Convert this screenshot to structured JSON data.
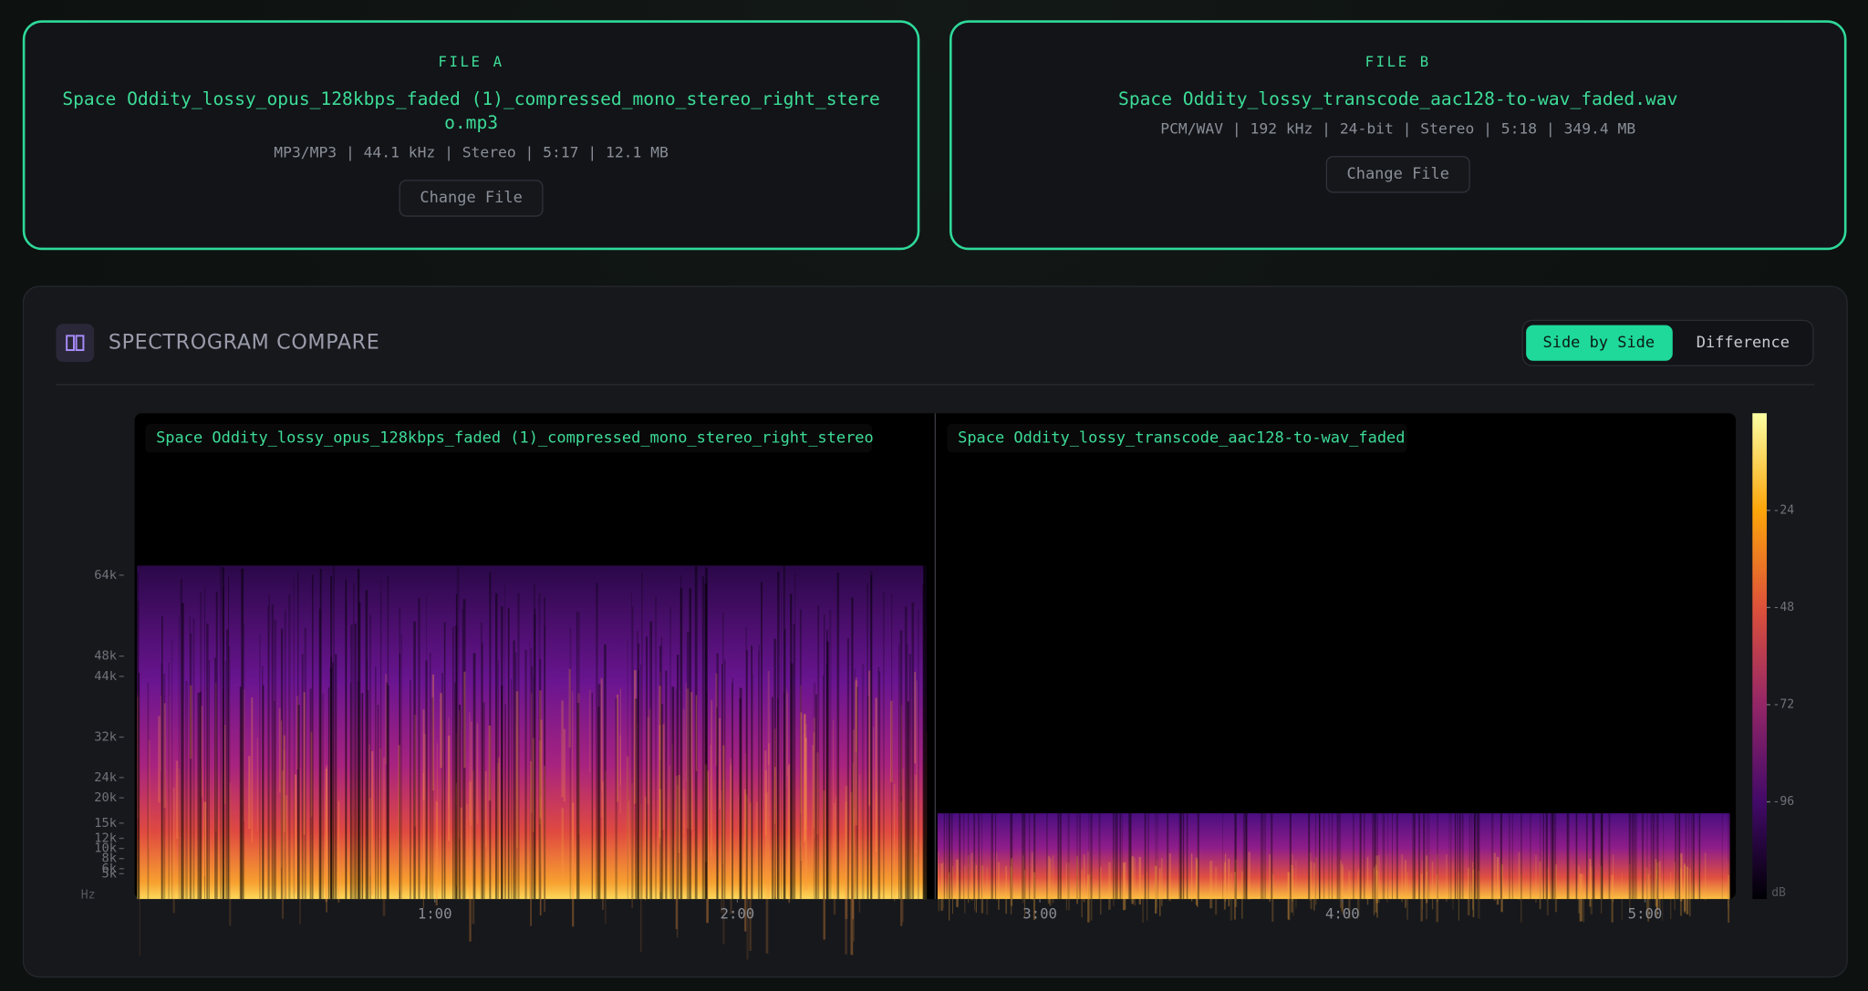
{
  "file_a": {
    "label": "FILE A",
    "filename": "Space Oddity_lossy_opus_128kbps_faded (1)_compressed_mono_stereo_right_stereo.mp3",
    "meta": "MP3/MP3 | 44.1 kHz | Stereo | 5:17 | 12.1 MB",
    "button": "Change File"
  },
  "file_b": {
    "label": "FILE B",
    "filename": "Space Oddity_lossy_transcode_aac128-to-wav_faded.wav",
    "meta": "PCM/WAV | 192 kHz | 24-bit | Stereo | 5:18 | 349.4 MB",
    "button": "Change File"
  },
  "panel": {
    "title": "SPECTROGRAM COMPARE",
    "modes": [
      "Side by Side",
      "Difference"
    ]
  },
  "spectrogram": {
    "labels": [
      "Space Oddity_lossy_opus_128kbps_faded (1)_compressed_mono_stereo_right_stereo",
      "Space Oddity_lossy_transcode_aac128-to-wav_faded"
    ],
    "y_unit": "Hz",
    "ylim": [
      0,
      96000
    ],
    "yticks": [
      {
        "value": 64000,
        "label": "64k"
      },
      {
        "value": 48000,
        "label": "48k"
      },
      {
        "value": 44000,
        "label": "44k"
      },
      {
        "value": 32000,
        "label": "32k"
      },
      {
        "value": 24000,
        "label": "24k"
      },
      {
        "value": 20000,
        "label": "20k"
      },
      {
        "value": 15000,
        "label": "15k"
      },
      {
        "value": 12000,
        "label": "12k"
      },
      {
        "value": 10000,
        "label": "10k"
      },
      {
        "value": 8000,
        "label": "8k"
      },
      {
        "value": 6000,
        "label": "6k"
      },
      {
        "value": 5000,
        "label": "5k"
      }
    ],
    "xlim": [
      0,
      318
    ],
    "xticks": [
      {
        "value": 60,
        "label": "1:00"
      },
      {
        "value": 120,
        "label": "2:00"
      },
      {
        "value": 180,
        "label": "3:00"
      },
      {
        "value": 240,
        "label": "4:00"
      },
      {
        "value": 300,
        "label": "5:00"
      }
    ],
    "colorbar": {
      "zlim": [
        -120,
        0
      ],
      "ticks": [
        -24,
        -48,
        -72,
        -96
      ],
      "unit": "dB"
    }
  }
}
